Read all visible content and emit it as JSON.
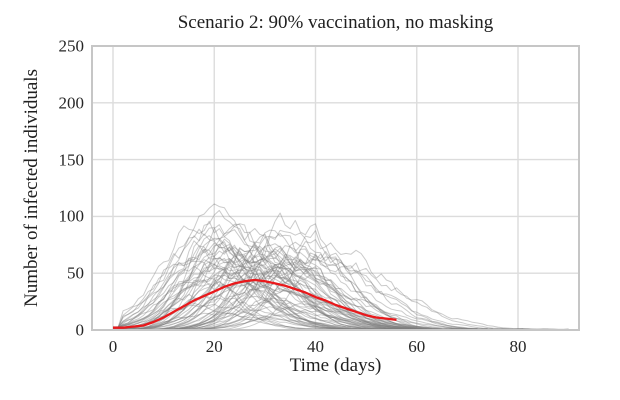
{
  "chart_data": {
    "type": "line",
    "title": "Scenario 2: 90% vaccination, no masking",
    "xlabel": "Time (days)",
    "ylabel": "Number of infected individuals",
    "xlim": [
      -4,
      92
    ],
    "ylim": [
      0,
      250
    ],
    "x_ticks": [
      0,
      20,
      40,
      60,
      80
    ],
    "y_ticks": [
      0,
      50,
      100,
      150,
      200,
      250
    ],
    "grid": true,
    "legend": false,
    "colors": {
      "background": "#ffffff",
      "grid": "#dcdcdc",
      "spine": "#c6c6c6",
      "text": "#202020",
      "ensemble": "#7d7d7d",
      "mean": "#e8191c"
    },
    "ensemble": {
      "name": "stochastic-epidemic-simulation-runs",
      "count": 70,
      "seed": 11,
      "opacity": 0.4,
      "line_width": 1,
      "peak_range": [
        18,
        115
      ],
      "peak_time_range": [
        15,
        42
      ],
      "rise_sigma_days": [
        5,
        9
      ],
      "fall_sigma_days": [
        7,
        14
      ],
      "duration_range_days": [
        55,
        90
      ],
      "initial_infected": 2
    },
    "mean_series": {
      "name": "mean-infections-curve",
      "line_width": 2.3,
      "x": [
        0,
        2,
        4,
        6,
        8,
        10,
        12,
        14,
        16,
        18,
        20,
        22,
        24,
        26,
        28,
        30,
        32,
        34,
        36,
        38,
        40,
        42,
        44,
        46,
        48,
        50,
        52,
        54,
        56
      ],
      "y": [
        2,
        2,
        3,
        4,
        7,
        11,
        16,
        21,
        26,
        30,
        34,
        38,
        41,
        43,
        44,
        43,
        41,
        39,
        36,
        33,
        29,
        26,
        22,
        19,
        16,
        13,
        11,
        10,
        9
      ]
    }
  }
}
